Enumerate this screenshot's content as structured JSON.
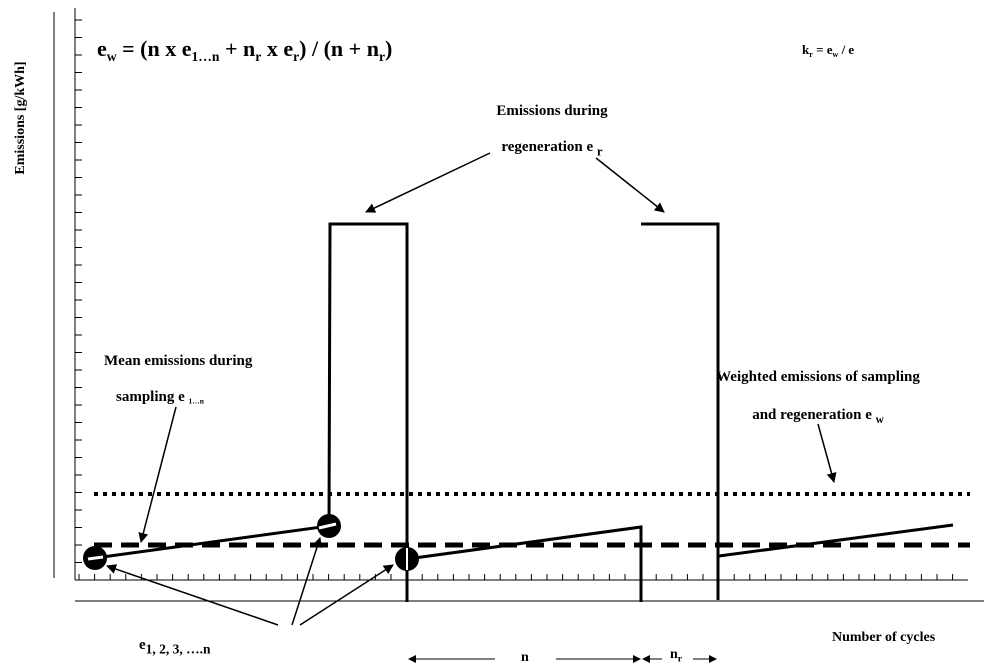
{
  "y_axis_label": "Emissions [g/kWh]",
  "x_axis_label": "Number of cycles",
  "formula_ew": {
    "lhs": "e",
    "lhs_sub": "w",
    "eq1": " = (n x e",
    "sub1": "1…n",
    "eq2": " + n",
    "sub2": "r",
    "eq3": " x e",
    "sub3": "r",
    "eq4": ") / (n + n",
    "sub4": "r",
    "eq5": ")"
  },
  "formula_kr": {
    "k": "k",
    "k_sub": "r",
    "mid": " = e",
    "mid_sub": "w",
    "tail": " / e"
  },
  "regen_label": {
    "line1": "Emissions during",
    "line2": "regeneration e",
    "sub": "r"
  },
  "mean_label": {
    "line1": "Mean emissions during",
    "line2": "sampling e",
    "sub": "1…n"
  },
  "weighted_label": {
    "line1": "Weighted emissions of sampling",
    "line2": "and regeneration e",
    "sub": "w"
  },
  "samples_label": {
    "text": "e",
    "sub": "1, 2, 3, ….n"
  },
  "interval_n": "n",
  "interval_nr": {
    "text": "n",
    "sub": "r"
  }
}
